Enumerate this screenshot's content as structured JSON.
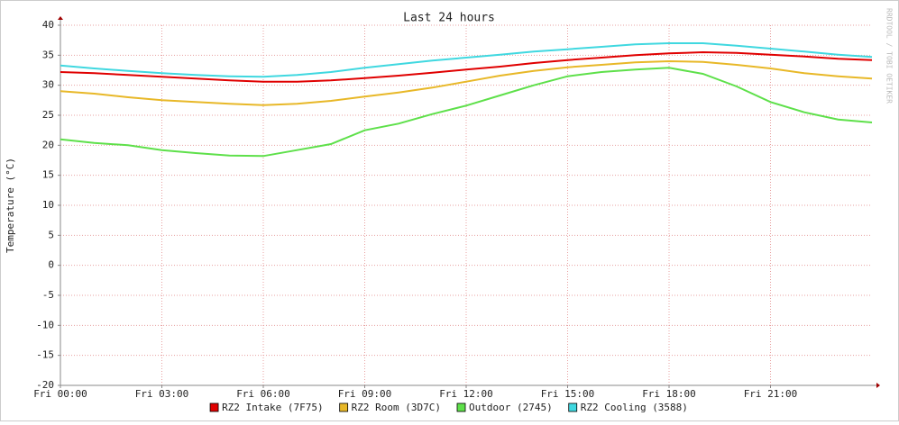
{
  "chart_data": {
    "type": "line",
    "title": "Last 24 hours",
    "y_label": "Temperature (°C)",
    "watermark": "RRDTOOL / TOBI OETIKER",
    "grid": true,
    "legend": "bottom",
    "x": [
      0,
      1,
      2,
      3,
      4,
      5,
      6,
      7,
      8,
      9,
      10,
      11,
      12,
      13,
      14,
      15,
      16,
      17,
      18,
      19,
      20,
      21,
      22,
      23,
      24
    ],
    "xlim": [
      0,
      24
    ],
    "xticks": [
      {
        "value": 0,
        "label": "Fri 00:00"
      },
      {
        "value": 3,
        "label": "Fri 03:00"
      },
      {
        "value": 6,
        "label": "Fri 06:00"
      },
      {
        "value": 9,
        "label": "Fri 09:00"
      },
      {
        "value": 12,
        "label": "Fri 12:00"
      },
      {
        "value": 15,
        "label": "Fri 15:00"
      },
      {
        "value": 18,
        "label": "Fri 18:00"
      },
      {
        "value": 21,
        "label": "Fri 21:00"
      }
    ],
    "ylim": [
      -20,
      40
    ],
    "yticks": [
      -20,
      -15,
      -10,
      -5,
      0,
      5,
      10,
      15,
      20,
      25,
      30,
      35,
      40
    ],
    "series": [
      {
        "name": "RZ2 Intake (7F75)",
        "color": "#e00000",
        "values": [
          32.2,
          32.0,
          31.7,
          31.4,
          31.1,
          30.8,
          30.6,
          30.6,
          30.8,
          31.2,
          31.6,
          32.1,
          32.6,
          33.1,
          33.7,
          34.2,
          34.6,
          35.0,
          35.3,
          35.5,
          35.4,
          35.1,
          34.8,
          34.4,
          34.2
        ]
      },
      {
        "name": "RZ2 Room (3D7C)",
        "color": "#e8b828",
        "values": [
          29.0,
          28.6,
          28.0,
          27.5,
          27.2,
          26.9,
          26.7,
          26.9,
          27.4,
          28.1,
          28.8,
          29.6,
          30.6,
          31.6,
          32.4,
          33.0,
          33.4,
          33.8,
          34.0,
          33.9,
          33.4,
          32.8,
          32.0,
          31.5,
          31.1
        ]
      },
      {
        "name": "Outdoor (2745)",
        "color": "#5ee04a",
        "values": [
          21.0,
          20.4,
          20.0,
          19.2,
          18.7,
          18.3,
          18.2,
          19.2,
          20.2,
          22.5,
          23.6,
          25.2,
          26.6,
          28.3,
          30.0,
          31.5,
          32.2,
          32.6,
          32.9,
          31.9,
          29.8,
          27.2,
          25.5,
          24.3,
          23.8
        ]
      },
      {
        "name": "RZ2 Cooling (3588)",
        "color": "#40d8e0",
        "values": [
          33.3,
          32.8,
          32.4,
          32.0,
          31.7,
          31.5,
          31.4,
          31.7,
          32.2,
          32.9,
          33.5,
          34.1,
          34.6,
          35.1,
          35.6,
          36.0,
          36.4,
          36.8,
          37.0,
          37.0,
          36.6,
          36.1,
          35.6,
          35.1,
          34.7
        ]
      }
    ]
  }
}
